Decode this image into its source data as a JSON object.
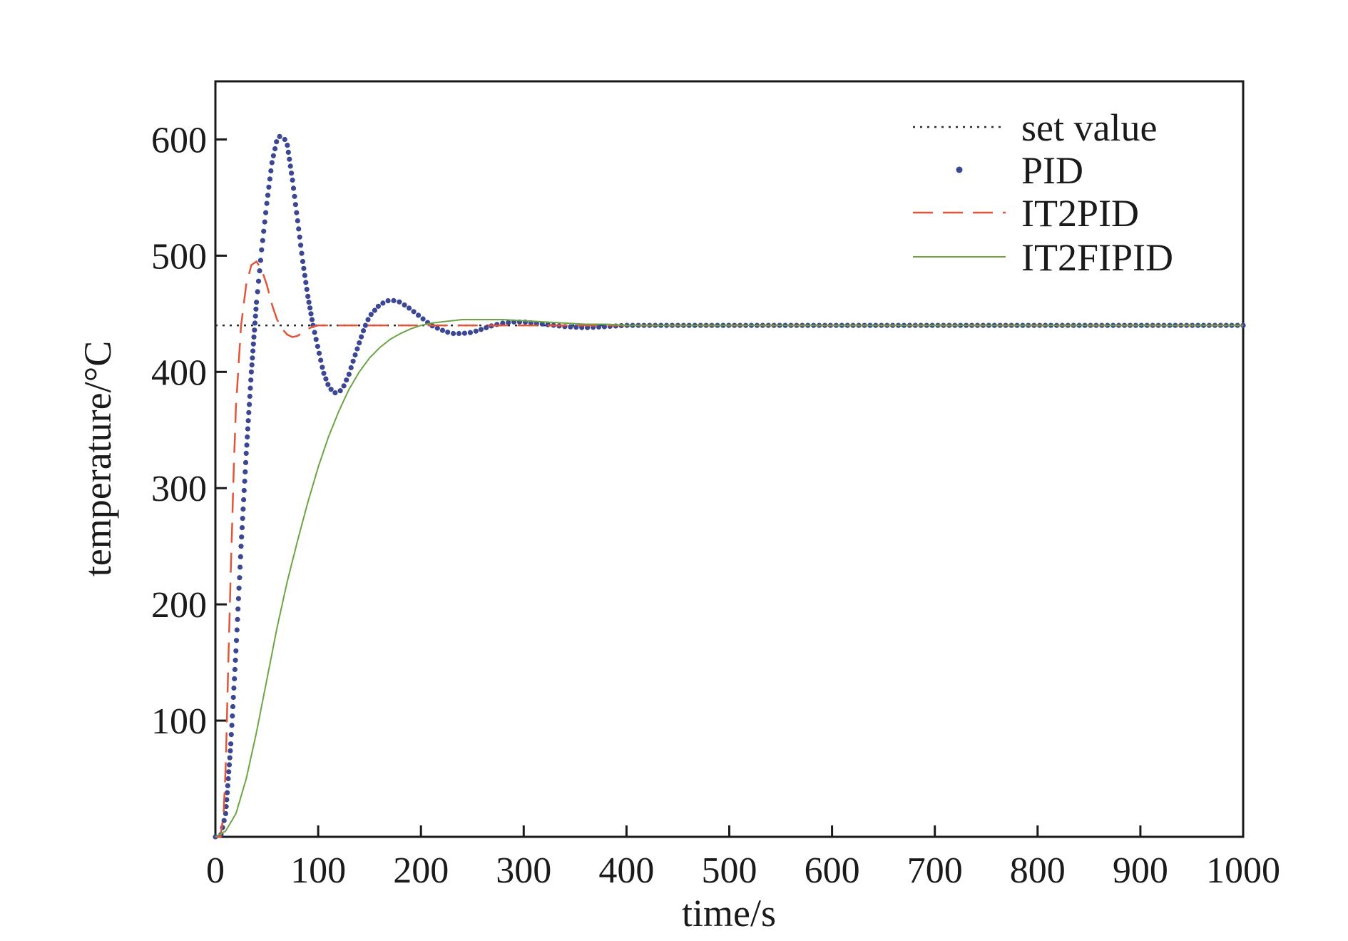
{
  "chart_data": {
    "type": "line",
    "title": "",
    "xlabel": "time/s",
    "ylabel": "temperature/°C",
    "xlim": [
      0,
      1000
    ],
    "ylim": [
      0,
      650
    ],
    "x_ticks": [
      0,
      100,
      200,
      300,
      400,
      500,
      600,
      700,
      800,
      900,
      1000
    ],
    "y_ticks": [
      100,
      200,
      300,
      400,
      500,
      600
    ],
    "grid": false,
    "legend_position": "top-right",
    "series": [
      {
        "name": "set value",
        "style": "dotted",
        "color": "#2b2b2b",
        "x": [
          0,
          1000
        ],
        "y": [
          440,
          440
        ]
      },
      {
        "name": "PID",
        "style": "markers",
        "color": "#3c4794",
        "x": [
          0,
          5,
          10,
          15,
          20,
          25,
          30,
          35,
          40,
          45,
          50,
          55,
          60,
          65,
          70,
          75,
          80,
          85,
          90,
          95,
          100,
          105,
          110,
          115,
          120,
          125,
          130,
          135,
          140,
          145,
          150,
          160,
          170,
          180,
          190,
          200,
          210,
          220,
          230,
          240,
          250,
          260,
          270,
          280,
          290,
          300,
          310,
          320,
          340,
          360,
          380,
          400,
          450,
          500,
          600,
          700,
          800,
          900,
          1000
        ],
        "y": [
          0,
          0,
          20,
          80,
          160,
          250,
          330,
          400,
          460,
          505,
          545,
          580,
          600,
          605,
          595,
          565,
          530,
          495,
          465,
          440,
          420,
          400,
          388,
          382,
          382,
          388,
          398,
          412,
          425,
          438,
          448,
          458,
          462,
          460,
          454,
          447,
          440,
          436,
          433,
          433,
          434,
          437,
          440,
          442,
          443,
          443,
          442,
          441,
          439,
          438,
          439,
          440,
          440,
          440,
          440,
          440,
          440,
          440,
          440
        ]
      },
      {
        "name": "IT2PID",
        "style": "dashed",
        "color": "#e2553a",
        "x": [
          0,
          5,
          8,
          10,
          12,
          15,
          18,
          20,
          25,
          30,
          35,
          40,
          45,
          50,
          55,
          60,
          65,
          70,
          75,
          80,
          85,
          90,
          95,
          100,
          110,
          120,
          130,
          150,
          200,
          300,
          400,
          1000
        ],
        "y": [
          0,
          0,
          20,
          60,
          130,
          230,
          320,
          370,
          440,
          475,
          492,
          495,
          488,
          475,
          458,
          445,
          437,
          432,
          430,
          431,
          434,
          437,
          439,
          440,
          440,
          440,
          440,
          440,
          440,
          440,
          440,
          440
        ]
      },
      {
        "name": "IT2FIPID",
        "style": "solid",
        "color": "#6ba544",
        "x": [
          0,
          10,
          20,
          30,
          40,
          50,
          60,
          70,
          80,
          90,
          100,
          110,
          120,
          130,
          140,
          150,
          160,
          170,
          180,
          190,
          200,
          210,
          220,
          230,
          240,
          250,
          260,
          270,
          280,
          300,
          320,
          340,
          360,
          380,
          400,
          450,
          500,
          600,
          700,
          800,
          900,
          1000
        ],
        "y": [
          0,
          5,
          20,
          50,
          90,
          135,
          180,
          220,
          255,
          288,
          318,
          344,
          366,
          385,
          400,
          412,
          421,
          428,
          433,
          437,
          440,
          442,
          443,
          444,
          445,
          445,
          445,
          445,
          445,
          444,
          443,
          442,
          441,
          441,
          440,
          440,
          440,
          440,
          440,
          440,
          440,
          440
        ]
      }
    ]
  }
}
